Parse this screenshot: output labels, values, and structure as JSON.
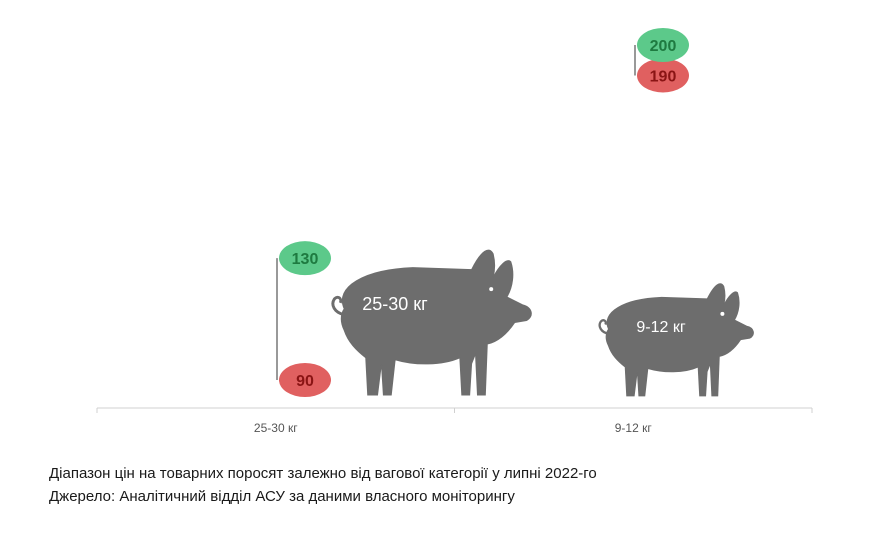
{
  "chart_data": {
    "type": "range",
    "categories": [
      "25-30 кг",
      "9-12 кг"
    ],
    "series": [
      {
        "values": [
          130,
          200
        ],
        "color": "#5cc98a",
        "text_color": "#1e7a40"
      },
      {
        "values": [
          90,
          190
        ],
        "color": "#e06060",
        "text_color": "#8a1414"
      }
    ],
    "pig_labels": [
      "25-30 кг",
      "9-12 кг"
    ],
    "ylim": [
      80,
      210
    ],
    "colors": {
      "pig": "#6d6d6d",
      "axis": "#d0d0d0",
      "range_line": "#333333",
      "tick_label": "#555555"
    }
  },
  "caption": {
    "line1": "Діапазон цін на товарних поросят залежно від вагової категорії у липні 2022-го",
    "line2": "Джерело: Аналітичний відділ АСУ за даними власного моніторингу"
  }
}
